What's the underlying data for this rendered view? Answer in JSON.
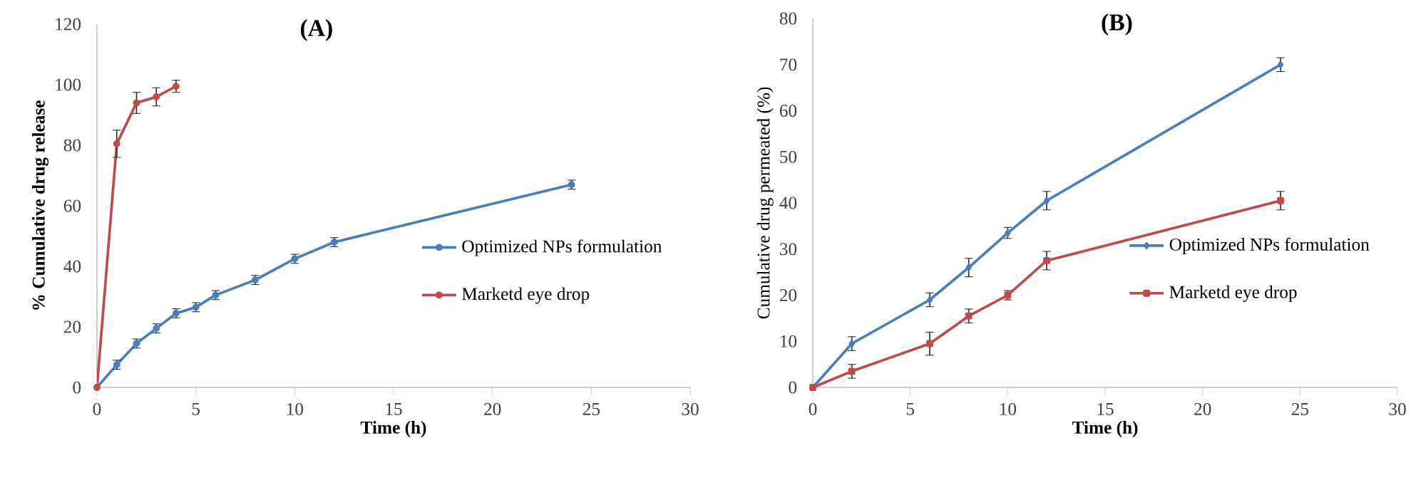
{
  "chart_data": [
    {
      "type": "line",
      "title": "(A)",
      "xlabel": "Time (h)",
      "ylabel": "% Cumulative drug release",
      "xlim": [
        0,
        30
      ],
      "xticks": [
        0,
        5,
        10,
        15,
        20,
        25,
        30
      ],
      "ylim": [
        0,
        120
      ],
      "yticks": [
        0,
        20,
        40,
        60,
        80,
        100,
        120
      ],
      "legend": "right",
      "marker": "circle",
      "line_style": "solid",
      "series": [
        {
          "name": "Optimized NPs formulation",
          "color": "#4a7ebb",
          "x": [
            0,
            1,
            2,
            3,
            4,
            5,
            6,
            8,
            10,
            12,
            24
          ],
          "values": [
            0,
            7.5,
            14.5,
            19.5,
            24.5,
            26.5,
            30.5,
            35.5,
            42.5,
            48,
            67
          ],
          "errors": [
            null,
            1.5,
            1.5,
            1.5,
            1.5,
            1.5,
            1.5,
            1.5,
            1.5,
            1.5,
            1.5
          ]
        },
        {
          "name": "Marketd eye drop",
          "color": "#be4b48",
          "x": [
            0,
            1,
            2,
            3,
            4
          ],
          "values": [
            0,
            80.5,
            94,
            96,
            99.5
          ],
          "errors": [
            null,
            4.5,
            3.5,
            3,
            2
          ]
        }
      ]
    },
    {
      "type": "line",
      "title": "(B)",
      "xlabel": "Time (h)",
      "ylabel": "Cumulative drug permeated (%)",
      "xlim": [
        0,
        30
      ],
      "xticks": [
        0,
        5,
        10,
        15,
        20,
        25,
        30
      ],
      "ylim": [
        0,
        80
      ],
      "yticks": [
        0,
        10,
        20,
        30,
        40,
        50,
        60,
        70,
        80
      ],
      "legend": "right",
      "line_style": "solid",
      "series": [
        {
          "name": "Optimized NPs formulation",
          "color": "#4a7ebb",
          "marker": "diamond",
          "x": [
            0,
            2,
            6,
            8,
            10,
            12,
            24
          ],
          "values": [
            0,
            9.5,
            19,
            26,
            33.5,
            40.5,
            70
          ],
          "errors": [
            null,
            1.5,
            1.5,
            2,
            1.2,
            2,
            1.5
          ]
        },
        {
          "name": "Marketd eye drop",
          "color": "#be4b48",
          "marker": "square",
          "x": [
            0,
            2,
            6,
            8,
            10,
            12,
            24
          ],
          "values": [
            0,
            3.5,
            9.5,
            15.5,
            20,
            27.5,
            40.5
          ],
          "errors": [
            null,
            1.5,
            2.5,
            1.5,
            1,
            2,
            2
          ]
        }
      ]
    }
  ]
}
